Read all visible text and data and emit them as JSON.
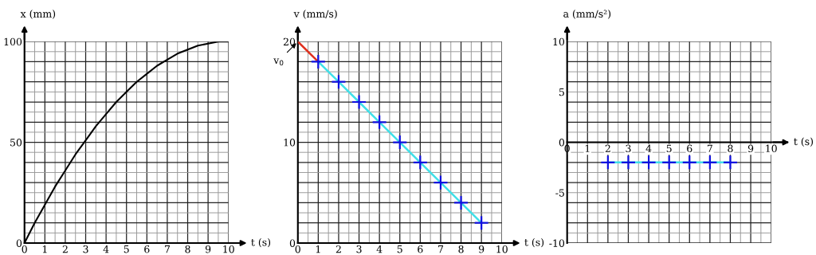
{
  "chart_data": [
    {
      "type": "line",
      "xlabel": "t (s)",
      "ylabel": "x (mm)",
      "x": [
        0,
        0.5,
        1,
        1.5,
        2,
        2.5,
        3,
        3.5,
        4,
        4.5,
        5,
        5.5,
        6,
        6.5,
        7,
        7.5,
        8,
        8.5,
        9,
        9.5,
        10
      ],
      "series": [
        {
          "color": "#000000",
          "values": [
            0,
            10,
            19,
            28,
            36,
            44,
            51,
            58,
            64,
            70,
            75,
            80,
            84,
            88,
            91,
            94,
            96,
            98,
            99,
            100,
            100
          ]
        }
      ],
      "xlim": [
        0,
        10
      ],
      "ylim": [
        0,
        100
      ],
      "xticks": [
        0,
        1,
        2,
        3,
        4,
        5,
        6,
        7,
        8,
        9,
        10
      ],
      "yticks": [
        0,
        50,
        100
      ],
      "grid": true,
      "marker": "none"
    },
    {
      "type": "line",
      "xlabel": "t (s)",
      "ylabel": "v (mm/s)",
      "series": [
        {
          "color": "#e0301e",
          "x": [
            0,
            1
          ],
          "values": [
            20,
            18
          ]
        },
        {
          "color": "#40e0e8",
          "x": [
            1,
            2,
            3,
            4,
            5,
            6,
            7,
            8,
            9
          ],
          "values": [
            18,
            16,
            14,
            12,
            10,
            8,
            6,
            4,
            2
          ]
        },
        {
          "type": "scatter",
          "color": "#1010e0",
          "marker": "cross",
          "x": [
            1,
            2,
            3,
            4,
            5,
            6,
            7,
            8,
            9
          ],
          "values": [
            18,
            16,
            14,
            12,
            10,
            8,
            6,
            4,
            2
          ]
        }
      ],
      "annotations": [
        {
          "text": "v$_{0}$",
          "x": 0,
          "y": 20
        }
      ],
      "xlim": [
        0,
        10
      ],
      "ylim": [
        0,
        20
      ],
      "xticks": [
        0,
        1,
        2,
        3,
        4,
        5,
        6,
        7,
        8,
        9,
        10
      ],
      "yticks": [
        0,
        10,
        20
      ],
      "grid": true,
      "marker": "none"
    },
    {
      "type": "line",
      "xlabel": "t (s)",
      "ylabel": "a (mm/s²)",
      "series": [
        {
          "color": "#40e0e8",
          "x": [
            2,
            3,
            4,
            5,
            6,
            7,
            8
          ],
          "values": [
            -2,
            -2,
            -2,
            -2,
            -2,
            -2,
            -2
          ]
        },
        {
          "type": "scatter",
          "color": "#1010e0",
          "marker": "cross",
          "x": [
            2,
            3,
            4,
            5,
            6,
            7,
            8
          ],
          "values": [
            -2,
            -2,
            -2,
            -2,
            -2,
            -2,
            -2
          ]
        }
      ],
      "xlim": [
        0,
        10
      ],
      "ylim": [
        -10,
        10
      ],
      "xticks": [
        0,
        1,
        2,
        3,
        4,
        5,
        6,
        7,
        8,
        9,
        10
      ],
      "yticks": [
        10,
        5,
        0,
        -5,
        -10
      ],
      "grid": true,
      "marker": "none"
    }
  ]
}
